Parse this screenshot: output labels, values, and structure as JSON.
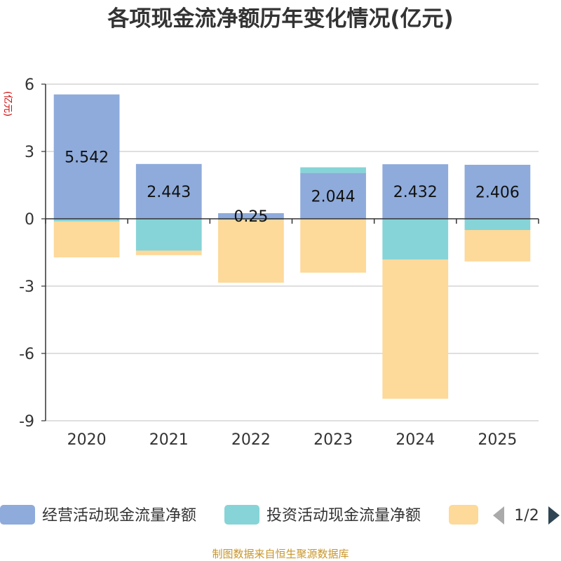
{
  "chart_data": {
    "type": "bar",
    "stacked": true,
    "title": "各项现金流净额历年变化情况(亿元)",
    "ylabel": "(亿元)",
    "xlabel": "",
    "categories": [
      "2020",
      "2021",
      "2022",
      "2023",
      "2024",
      "2025"
    ],
    "ylim": [
      -9,
      6
    ],
    "yticks": [
      6,
      3,
      0,
      -3,
      -6,
      -9
    ],
    "grid": true,
    "legend_position": "bottom",
    "series": [
      {
        "name": "经营活动现金流量净额",
        "color": "#8eabdb",
        "values": [
          5.542,
          2.443,
          0.25,
          2.044,
          2.432,
          2.406
        ],
        "data_labels": [
          "5.542",
          "2.443",
          "0.25",
          "2.044",
          "2.432",
          "2.406"
        ]
      },
      {
        "name": "投资活动现金流量净额",
        "color": "#86d4d7",
        "values": [
          -0.12,
          -1.42,
          -0.05,
          0.25,
          -1.82,
          -0.5
        ]
      },
      {
        "name": "",
        "color": "#fdd99a",
        "values": [
          -1.6,
          -0.2,
          -2.8,
          -2.4,
          -6.2,
          -1.4
        ]
      }
    ]
  },
  "legend": {
    "page": "1/2"
  },
  "source": "制图数据来自恒生聚源数据库"
}
